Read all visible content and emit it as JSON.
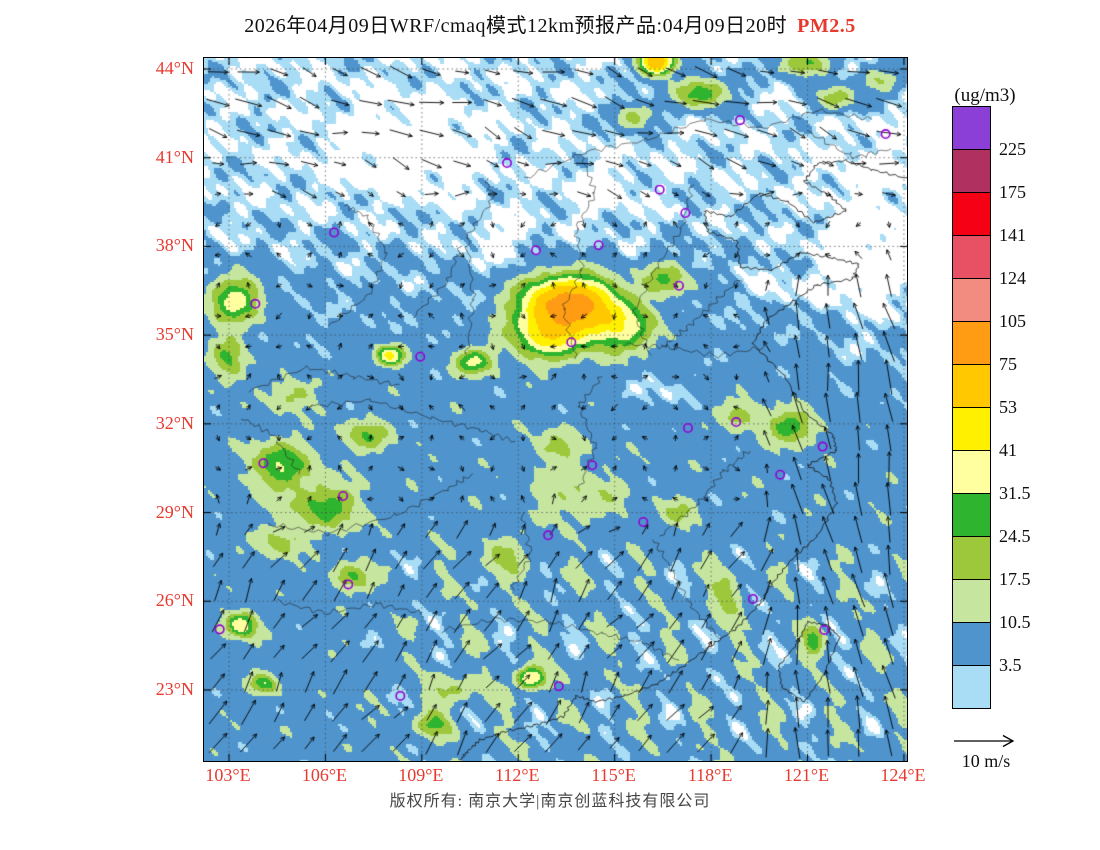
{
  "title": {
    "main": "2026年04月09日WRF/cmaq模式12km预报产品:04月09日20时",
    "species": "PM2.5"
  },
  "colors": {
    "accent_red": "#e8392e",
    "marker_purple": "#9400d3",
    "frame_black": "#000000"
  },
  "axes": {
    "x_ticks": [
      "103°E",
      "106°E",
      "109°E",
      "112°E",
      "115°E",
      "118°E",
      "121°E",
      "124°E"
    ],
    "y_ticks": [
      "44°N",
      "41°N",
      "38°N",
      "35°N",
      "32°N",
      "29°N",
      "26°N",
      "23°N"
    ]
  },
  "legend": {
    "units": "(ug/m3)",
    "values": [
      "225",
      "175",
      "141",
      "124",
      "105",
      "75",
      "53",
      "41",
      "31.5",
      "24.5",
      "17.5",
      "10.5",
      "3.5"
    ],
    "colors_top_to_bottom": [
      "#8b3fd6",
      "#b03060",
      "#f50014",
      "#e85064",
      "#f28c80",
      "#ff9c14",
      "#ffc800",
      "#fff000",
      "#ffffa0",
      "#2eb42e",
      "#9dc83c",
      "#c6e6a0",
      "#4f94cd",
      "#a9dcf5"
    ]
  },
  "wind": {
    "label": "10 m/s"
  },
  "footer": {
    "copyright": "版权所有: 南京大学|南京创蓝科技有限公司"
  }
}
